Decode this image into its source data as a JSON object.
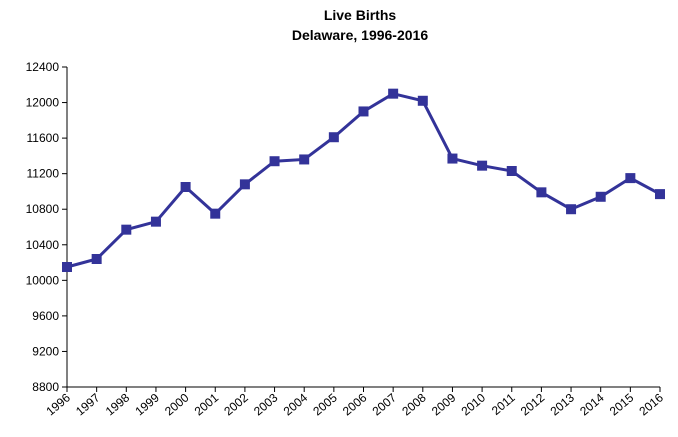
{
  "chart_data": {
    "type": "line",
    "title": "Live Births",
    "subtitle": "Delaware, 1996-2016",
    "categories": [
      "1996",
      "1997",
      "1998",
      "1999",
      "2000",
      "2001",
      "2002",
      "2003",
      "2004",
      "2005",
      "2006",
      "2007",
      "2008",
      "2009",
      "2010",
      "2011",
      "2012",
      "2013",
      "2014",
      "2015",
      "2016"
    ],
    "series": [
      {
        "name": "Live Births",
        "color": "#333399",
        "values": [
          10150,
          10240,
          10570,
          10660,
          11050,
          10750,
          11080,
          11340,
          11360,
          11610,
          11900,
          12100,
          12020,
          11370,
          11290,
          11230,
          10990,
          10800,
          10940,
          11150,
          10970
        ]
      }
    ],
    "ylim": [
      8800,
      12400
    ],
    "yticks": [
      8800,
      9200,
      9600,
      10000,
      10400,
      10800,
      11200,
      11600,
      12000,
      12400
    ],
    "grid": false
  }
}
